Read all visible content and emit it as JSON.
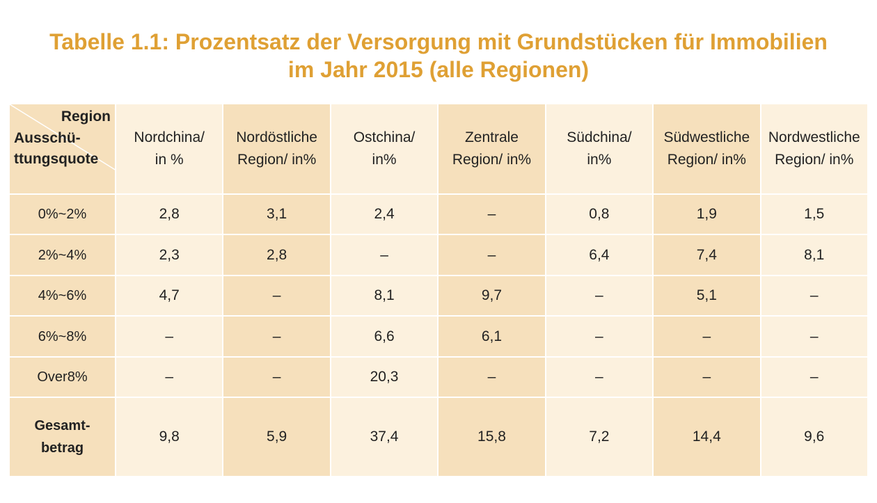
{
  "title": "Tabelle 1.1: Prozentsatz der Versorgung mit Grundstücken für Immobilien\nim Jahr 2015 (alle Regionen)",
  "table": {
    "corner_top": "Region",
    "corner_bottom": "Ausschü-\nttungsquote",
    "columns": [
      "Nordchina/\nin %",
      "Nordöstliche\nRegion/ in%",
      "Ostchina/\nin%",
      "Zentrale\nRegion/ in%",
      "Südchina/\nin%",
      "Südwestliche\nRegion/ in%",
      "Nordwestliche\nRegion/ in%"
    ],
    "rows": [
      {
        "label": "0%~2%",
        "cells": [
          "2,8",
          "3,1",
          "2,4",
          "–",
          "0,8",
          "1,9",
          "1,5"
        ]
      },
      {
        "label": "2%~4%",
        "cells": [
          "2,3",
          "2,8",
          "–",
          "–",
          "6,4",
          "7,4",
          "8,1"
        ]
      },
      {
        "label": "4%~6%",
        "cells": [
          "4,7",
          "–",
          "8,1",
          "9,7",
          "–",
          "5,1",
          "–"
        ]
      },
      {
        "label": "6%~8%",
        "cells": [
          "–",
          "–",
          "6,6",
          "6,1",
          "–",
          "–",
          "–"
        ]
      },
      {
        "label": "Over8%",
        "cells": [
          "–",
          "–",
          "20,3",
          "–",
          "–",
          "–",
          "–"
        ]
      },
      {
        "label": "Gesamt-\nbetrag",
        "cells": [
          "9,8",
          "5,9",
          "37,4",
          "15,8",
          "7,2",
          "14,4",
          "9,6"
        ]
      }
    ]
  }
}
